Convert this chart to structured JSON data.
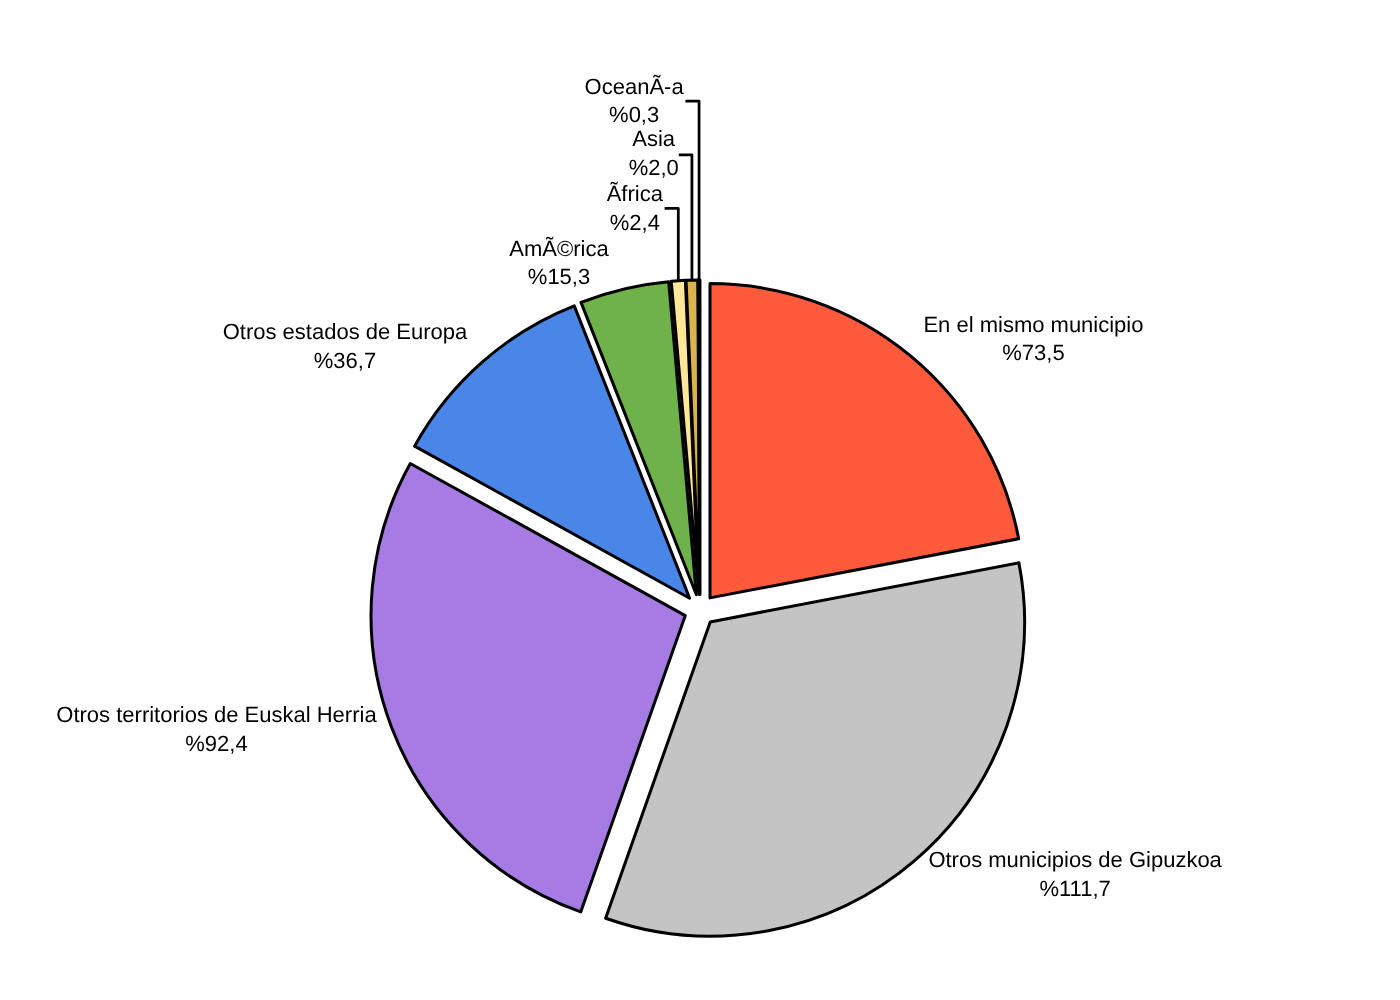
{
  "chart_data": {
    "type": "pie",
    "categories": [
      "En el mismo municipio",
      "Otros municipios de Gipuzkoa",
      "Otros territorios de Euskal Herria",
      "Otros estados de Europa",
      "AmÃ©rica",
      "Ãfrica",
      "Asia",
      "OceanÃ-a"
    ],
    "values": [
      73.5,
      111.7,
      92.4,
      36.7,
      15.3,
      2.4,
      2.0,
      0.3
    ],
    "value_labels": [
      "%73,5",
      "%111,7",
      "%92,4",
      "%36,7",
      "%15,3",
      "%2,4",
      "%2,0",
      "%0,3"
    ],
    "colors": [
      "#ff5a3c",
      "#c4c4c4",
      "#a67be3",
      "#4a86e8",
      "#6fb24a",
      "#ffe699",
      "#d9b44a",
      "#404040"
    ],
    "legend": false
  }
}
